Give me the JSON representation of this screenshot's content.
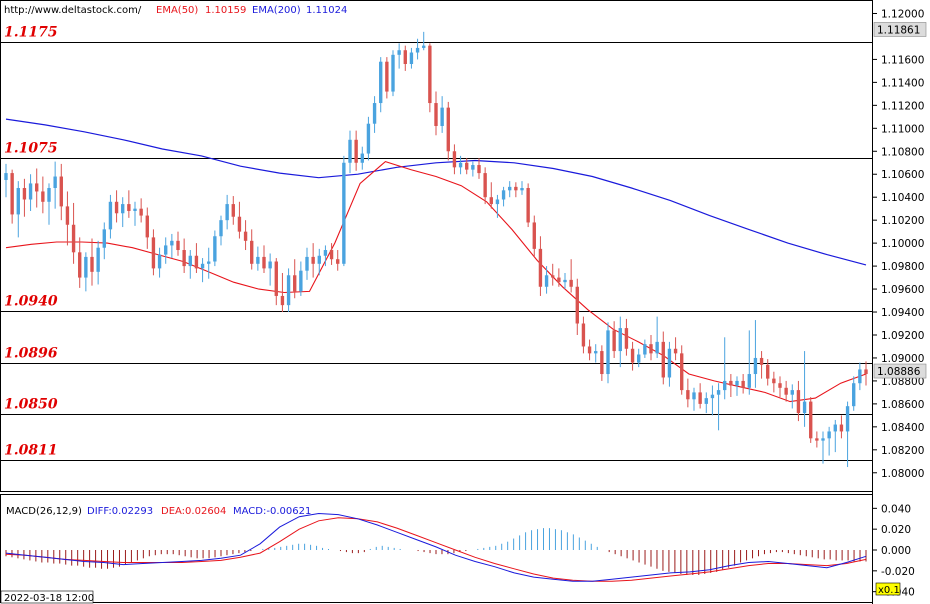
{
  "header": {
    "url": "http://www.deltastock.com/",
    "ema50_label": "EMA(50)",
    "ema50_value": "1.10159",
    "ema200_label": "EMA(200)",
    "ema200_value": "1.11024"
  },
  "macd_header": {
    "label": "MACD(26,12,9)",
    "diff": "DIFF:0.02293",
    "dea": "DEA:0.02604",
    "macd": "MACD:-0.00621"
  },
  "footer": {
    "date": "2022-03-18 12:00",
    "zoom": "x0.1"
  },
  "colors": {
    "up": "#4aa3df",
    "down": "#d9534f",
    "ema50": "#e8141b",
    "ema200": "#1a1adb",
    "level_text": "#e00000"
  },
  "chart_data": {
    "type": "candlestick",
    "price_axis": {
      "ticks": [
        "1.12000",
        "1.11600",
        "1.11400",
        "1.11200",
        "1.11000",
        "1.10800",
        "1.10600",
        "1.10400",
        "1.10200",
        "1.10000",
        "1.09800",
        "1.09600",
        "1.09400",
        "1.09200",
        "1.09000",
        "1.08800",
        "1.08600",
        "1.08400",
        "1.08200",
        "1.08000"
      ],
      "ylim": [
        1.0785,
        1.121
      ],
      "current_labels": [
        {
          "text": "1.11861",
          "value": 1.11861
        },
        {
          "text": "1.08886",
          "value": 1.08886
        }
      ]
    },
    "levels": [
      {
        "label": "1.1175",
        "value": 1.11755
      },
      {
        "label": "1.1075",
        "value": 1.1074
      },
      {
        "label": "1.0940",
        "value": 1.09405
      },
      {
        "label": "1.0896",
        "value": 1.08958
      },
      {
        "label": "1.0850",
        "value": 1.08513
      },
      {
        "label": "1.0811",
        "value": 1.08112
      }
    ],
    "candles": [
      [
        1.1055,
        1.1069,
        1.104,
        1.1061
      ],
      [
        1.1061,
        1.1064,
        1.1017,
        1.1025
      ],
      [
        1.1025,
        1.1054,
        1.1005,
        1.1048
      ],
      [
        1.1048,
        1.1056,
        1.1023,
        1.1038
      ],
      [
        1.1038,
        1.106,
        1.1028,
        1.1052
      ],
      [
        1.1052,
        1.1065,
        1.1031,
        1.1045
      ],
      [
        1.1045,
        1.1058,
        1.1026,
        1.1036
      ],
      [
        1.1036,
        1.1052,
        1.1016,
        1.1048
      ],
      [
        1.1048,
        1.1071,
        1.103,
        1.1058
      ],
      [
        1.1058,
        1.1069,
        1.102,
        1.1032
      ],
      [
        1.1032,
        1.1045,
        1.0998,
        1.1016
      ],
      [
        1.1016,
        1.1035,
        1.0982,
        1.0992
      ],
      [
        1.0992,
        1.1005,
        1.0961,
        1.097
      ],
      [
        1.097,
        1.0992,
        1.0958,
        1.0988
      ],
      [
        1.0988,
        1.1004,
        1.0963,
        1.0975
      ],
      [
        1.0975,
        1.1002,
        1.0964,
        1.0996
      ],
      [
        1.0996,
        1.1018,
        1.0986,
        1.1012
      ],
      [
        1.1012,
        1.1042,
        1.1004,
        1.1036
      ],
      [
        1.1036,
        1.1046,
        1.1018,
        1.1026
      ],
      [
        1.1026,
        1.104,
        1.1014,
        1.1034
      ],
      [
        1.1034,
        1.1046,
        1.1022,
        1.1028
      ],
      [
        1.1028,
        1.1036,
        1.1015,
        1.103
      ],
      [
        1.103,
        1.1039,
        1.1018,
        1.1024
      ],
      [
        1.1024,
        1.1031,
        1.0995,
        1.1005
      ],
      [
        1.1005,
        1.1012,
        1.0972,
        1.0978
      ],
      [
        1.0978,
        1.0996,
        1.097,
        1.099
      ],
      [
        1.099,
        1.1005,
        1.0982,
        1.0998
      ],
      [
        1.0998,
        1.1008,
        1.0987,
        1.1002
      ],
      [
        1.1002,
        1.101,
        1.0989,
        1.0994
      ],
      [
        1.0994,
        1.1004,
        1.0974,
        1.098
      ],
      [
        1.098,
        1.0994,
        1.0969,
        1.0989
      ],
      [
        1.0989,
        1.1,
        1.0974,
        1.0978
      ],
      [
        1.0978,
        1.0987,
        1.0966,
        1.0982
      ],
      [
        1.0982,
        1.0996,
        1.0969,
        1.0984
      ],
      [
        1.0984,
        1.1011,
        1.098,
        1.1006
      ],
      [
        1.1006,
        1.1024,
        1.0998,
        1.102
      ],
      [
        1.102,
        1.1042,
        1.1012,
        1.1034
      ],
      [
        1.1034,
        1.1041,
        1.1016,
        1.1023
      ],
      [
        1.1023,
        1.1036,
        1.1004,
        1.101
      ],
      [
        1.101,
        1.102,
        1.0994,
        1.1002
      ],
      [
        1.1002,
        1.1012,
        1.0977,
        1.0982
      ],
      [
        1.0982,
        1.0997,
        1.0976,
        1.0988
      ],
      [
        1.0988,
        1.0998,
        1.0974,
        1.0978
      ],
      [
        1.0978,
        1.0991,
        1.0963,
        1.0984
      ],
      [
        1.0984,
        1.0987,
        1.0946,
        1.0954
      ],
      [
        1.0954,
        1.0974,
        1.094,
        1.0946
      ],
      [
        1.0946,
        1.0978,
        1.094,
        1.0972
      ],
      [
        1.0972,
        1.0986,
        1.0952,
        1.0958
      ],
      [
        1.0958,
        1.0984,
        1.0954,
        1.0976
      ],
      [
        1.0976,
        1.0996,
        1.0968,
        1.0988
      ],
      [
        1.0988,
        1.1,
        1.097,
        1.0982
      ],
      [
        1.0982,
        1.0995,
        1.0972,
        1.0989
      ],
      [
        1.0989,
        1.0998,
        1.098,
        1.0994
      ],
      [
        1.0994,
        1.1,
        1.0981,
        1.0986
      ],
      [
        1.0986,
        1.0994,
        1.0976,
        1.0982
      ],
      [
        1.0982,
        1.1076,
        1.098,
        1.107
      ],
      [
        1.107,
        1.1098,
        1.1061,
        1.109
      ],
      [
        1.109,
        1.1098,
        1.1063,
        1.107
      ],
      [
        1.107,
        1.1084,
        1.1064,
        1.1078
      ],
      [
        1.1078,
        1.111,
        1.1072,
        1.1104
      ],
      [
        1.1104,
        1.1128,
        1.1096,
        1.1122
      ],
      [
        1.1122,
        1.1162,
        1.1114,
        1.1158
      ],
      [
        1.1158,
        1.1162,
        1.1126,
        1.1132
      ],
      [
        1.1132,
        1.1168,
        1.1128,
        1.1164
      ],
      [
        1.1164,
        1.1174,
        1.1152,
        1.1168
      ],
      [
        1.1168,
        1.1172,
        1.115,
        1.1156
      ],
      [
        1.1156,
        1.117,
        1.1152,
        1.1166
      ],
      [
        1.1166,
        1.1178,
        1.116,
        1.117
      ],
      [
        1.117,
        1.1184,
        1.1168,
        1.1172
      ],
      [
        1.1172,
        1.1174,
        1.1114,
        1.1122
      ],
      [
        1.1122,
        1.1132,
        1.1094,
        1.1102
      ],
      [
        1.1102,
        1.1128,
        1.1096,
        1.1118
      ],
      [
        1.1118,
        1.1123,
        1.1072,
        1.108
      ],
      [
        1.108,
        1.1086,
        1.106,
        1.1066
      ],
      [
        1.1066,
        1.1076,
        1.106,
        1.107
      ],
      [
        1.107,
        1.1074,
        1.106,
        1.1064
      ],
      [
        1.1064,
        1.1071,
        1.1058,
        1.1068
      ],
      [
        1.1068,
        1.1074,
        1.1056,
        1.1061
      ],
      [
        1.1061,
        1.1066,
        1.1034,
        1.104
      ],
      [
        1.104,
        1.1053,
        1.103,
        1.1034
      ],
      [
        1.1034,
        1.1042,
        1.1022,
        1.1038
      ],
      [
        1.1038,
        1.1049,
        1.1032,
        1.1046
      ],
      [
        1.1046,
        1.1054,
        1.104,
        1.1049
      ],
      [
        1.1049,
        1.1053,
        1.104,
        1.1046
      ],
      [
        1.1046,
        1.1054,
        1.1042,
        1.1048
      ],
      [
        1.1048,
        1.1052,
        1.1014,
        1.1018
      ],
      [
        1.1018,
        1.1024,
        1.0988,
        1.0995
      ],
      [
        1.0995,
        1.1006,
        1.0954,
        1.0962
      ],
      [
        1.0962,
        1.098,
        1.0956,
        1.0972
      ],
      [
        1.0972,
        1.0982,
        1.0963,
        1.097
      ],
      [
        1.097,
        1.0978,
        1.0962,
        1.0966
      ],
      [
        1.0966,
        1.0974,
        1.096,
        1.0968
      ],
      [
        1.0968,
        1.0986,
        1.0957,
        1.0962
      ],
      [
        1.0962,
        1.0969,
        1.092,
        1.093
      ],
      [
        1.093,
        1.0936,
        1.0904,
        1.091
      ],
      [
        1.091,
        1.0916,
        1.0898,
        1.0904
      ],
      [
        1.0904,
        1.0912,
        1.0896,
        1.0906
      ],
      [
        1.0906,
        1.0911,
        1.088,
        1.0886
      ],
      [
        1.0886,
        1.0931,
        1.0878,
        1.0924
      ],
      [
        1.0924,
        1.0932,
        1.09,
        1.0906
      ],
      [
        1.0906,
        1.0936,
        1.0892,
        1.0926
      ],
      [
        1.0926,
        1.0934,
        1.0902,
        1.0908
      ],
      [
        1.0908,
        1.0914,
        1.0889,
        1.0896
      ],
      [
        1.0896,
        1.0908,
        1.0892,
        1.0903
      ],
      [
        1.0903,
        1.0916,
        1.09,
        1.0912
      ],
      [
        1.0912,
        1.092,
        1.0898,
        1.0904
      ],
      [
        1.0904,
        1.0936,
        1.09,
        1.0914
      ],
      [
        1.0914,
        1.0923,
        1.0877,
        1.0883
      ],
      [
        1.0883,
        1.0914,
        1.0875,
        1.0908
      ],
      [
        1.0908,
        1.0918,
        1.0898,
        1.0904
      ],
      [
        1.0904,
        1.0911,
        1.0868,
        1.0872
      ],
      [
        1.0872,
        1.0882,
        1.0857,
        1.0864
      ],
      [
        1.0864,
        1.0874,
        1.0854,
        1.087
      ],
      [
        1.087,
        1.0878,
        1.0856,
        1.086
      ],
      [
        1.086,
        1.087,
        1.0852,
        1.0865
      ],
      [
        1.0865,
        1.0876,
        1.085,
        1.0868
      ],
      [
        1.0868,
        1.0878,
        1.0837,
        1.0872
      ],
      [
        1.0872,
        1.0918,
        1.0864,
        1.088
      ],
      [
        1.088,
        1.0886,
        1.0866,
        1.0876
      ],
      [
        1.0876,
        1.0884,
        1.0867,
        1.088
      ],
      [
        1.088,
        1.0886,
        1.0869,
        1.0874
      ],
      [
        1.0874,
        1.0924,
        1.0868,
        1.0886
      ],
      [
        1.0886,
        1.0933,
        1.0874,
        1.09
      ],
      [
        1.09,
        1.0906,
        1.0882,
        1.0894
      ],
      [
        1.0894,
        1.0899,
        1.0876,
        1.0882
      ],
      [
        1.0882,
        1.0888,
        1.087,
        1.0878
      ],
      [
        1.0878,
        1.0884,
        1.0866,
        1.0874
      ],
      [
        1.0874,
        1.088,
        1.0862,
        1.0868
      ],
      [
        1.0868,
        1.0877,
        1.0856,
        1.0872
      ],
      [
        1.0872,
        1.088,
        1.0845,
        1.0852
      ],
      [
        1.0852,
        1.0906,
        1.084,
        1.0862
      ],
      [
        1.0862,
        1.0866,
        1.0826,
        1.083
      ],
      [
        1.083,
        1.0836,
        1.0822,
        1.0828
      ],
      [
        1.0828,
        1.0836,
        1.0808,
        1.083
      ],
      [
        1.083,
        1.084,
        1.0815,
        1.0836
      ],
      [
        1.0836,
        1.0846,
        1.0818,
        1.0842
      ],
      [
        1.0842,
        1.085,
        1.083,
        1.0836
      ],
      [
        1.0836,
        1.0862,
        1.0805,
        1.0858
      ],
      [
        1.0858,
        1.0884,
        1.0854,
        1.0878
      ],
      [
        1.0878,
        1.0896,
        1.0872,
        1.089
      ],
      [
        1.089,
        1.0897,
        1.0876,
        1.0886
      ]
    ],
    "ema50": [
      1.0996,
      1.0999,
      1.1001,
      1.1001,
      1.1,
      1.0996,
      1.099,
      1.0984,
      1.0975,
      1.0966,
      1.096,
      1.0957,
      1.0958,
      1.1,
      1.1052,
      1.1071,
      1.1064,
      1.1058,
      1.105,
      1.1036,
      1.1012,
      1.0985,
      1.0962,
      1.0942,
      1.0925,
      1.0914,
      1.0902,
      1.0886,
      1.088,
      1.0875,
      1.087,
      1.0862,
      1.0865,
      1.0878,
      1.0886
    ],
    "ema200": [
      1.1108,
      1.1103,
      1.1097,
      1.109,
      1.1082,
      1.1076,
      1.1067,
      1.1061,
      1.1057,
      1.106,
      1.1066,
      1.107,
      1.1072,
      1.107,
      1.1065,
      1.1058,
      1.1048,
      1.1037,
      1.1024,
      1.1012,
      1.1,
      1.099,
      1.0981
    ],
    "macd_axis": {
      "ticks": [
        "0.040",
        "0.020",
        "0.000",
        "-0.020",
        "-0.040"
      ],
      "ylim": [
        -0.048,
        0.048
      ]
    },
    "macd_hist": [
      -0.006,
      -0.007,
      -0.008,
      -0.009,
      -0.01,
      -0.011,
      -0.012,
      -0.012,
      -0.013,
      -0.013,
      -0.014,
      -0.015,
      -0.015,
      -0.016,
      -0.017,
      -0.017,
      -0.018,
      -0.018,
      -0.017,
      -0.016,
      -0.014,
      -0.012,
      -0.01,
      -0.008,
      -0.006,
      -0.005,
      -0.004,
      -0.004,
      -0.004,
      -0.005,
      -0.006,
      -0.007,
      -0.008,
      -0.008,
      -0.008,
      -0.007,
      -0.006,
      -0.005,
      -0.004,
      -0.003,
      -0.002,
      -0.001,
      0.0,
      0.001,
      0.002,
      0.002,
      0.003,
      0.004,
      0.005,
      0.006,
      0.006,
      0.005,
      0.004,
      0.002,
      0.001,
      0.0,
      -0.001,
      -0.002,
      -0.003,
      -0.003,
      -0.002,
      0.001,
      0.003,
      0.004,
      0.003,
      0.002,
      0.001,
      0.0,
      0.0,
      -0.001,
      -0.002,
      -0.003,
      -0.004,
      -0.004,
      -0.004,
      -0.003,
      -0.002,
      -0.001,
      0.0,
      0.001,
      0.002,
      0.003,
      0.004,
      0.006,
      0.008,
      0.011,
      0.014,
      0.017,
      0.019,
      0.02,
      0.021,
      0.021,
      0.02,
      0.019,
      0.017,
      0.015,
      0.012,
      0.009,
      0.006,
      0.003,
      0.0,
      -0.002,
      -0.004,
      -0.006,
      -0.008,
      -0.01,
      -0.012,
      -0.014,
      -0.016,
      -0.018,
      -0.02,
      -0.021,
      -0.022,
      -0.023,
      -0.024,
      -0.024,
      -0.024,
      -0.023,
      -0.022,
      -0.021,
      -0.019,
      -0.017,
      -0.015,
      -0.012,
      -0.01,
      -0.008,
      -0.006,
      -0.004,
      -0.003,
      -0.002,
      -0.002,
      -0.003,
      -0.004,
      -0.005,
      -0.006,
      -0.007,
      -0.008,
      -0.009,
      -0.009,
      -0.01,
      -0.01,
      -0.01,
      -0.011,
      -0.011,
      -0.011
    ],
    "macd_diff": [
      -0.003,
      -0.005,
      -0.007,
      -0.009,
      -0.011,
      -0.012,
      -0.014,
      -0.013,
      -0.012,
      -0.011,
      -0.01,
      -0.008,
      -0.005,
      0.006,
      0.022,
      0.032,
      0.035,
      0.034,
      0.03,
      0.024,
      0.017,
      0.01,
      0.003,
      -0.005,
      -0.011,
      -0.016,
      -0.022,
      -0.026,
      -0.028,
      -0.03,
      -0.03,
      -0.028,
      -0.026,
      -0.024,
      -0.022,
      -0.021,
      -0.019,
      -0.015,
      -0.012,
      -0.011,
      -0.013,
      -0.015,
      -0.017,
      -0.012,
      -0.006
    ],
    "macd_dea": [
      -0.004,
      -0.005,
      -0.007,
      -0.009,
      -0.01,
      -0.011,
      -0.012,
      -0.012,
      -0.012,
      -0.012,
      -0.011,
      -0.01,
      -0.007,
      -0.003,
      0.008,
      0.02,
      0.028,
      0.031,
      0.03,
      0.027,
      0.021,
      0.014,
      0.007,
      0.0,
      -0.007,
      -0.013,
      -0.018,
      -0.023,
      -0.027,
      -0.029,
      -0.03,
      -0.03,
      -0.029,
      -0.027,
      -0.025,
      -0.023,
      -0.021,
      -0.018,
      -0.015,
      -0.013,
      -0.013,
      -0.014,
      -0.015,
      -0.013,
      -0.009
    ]
  }
}
